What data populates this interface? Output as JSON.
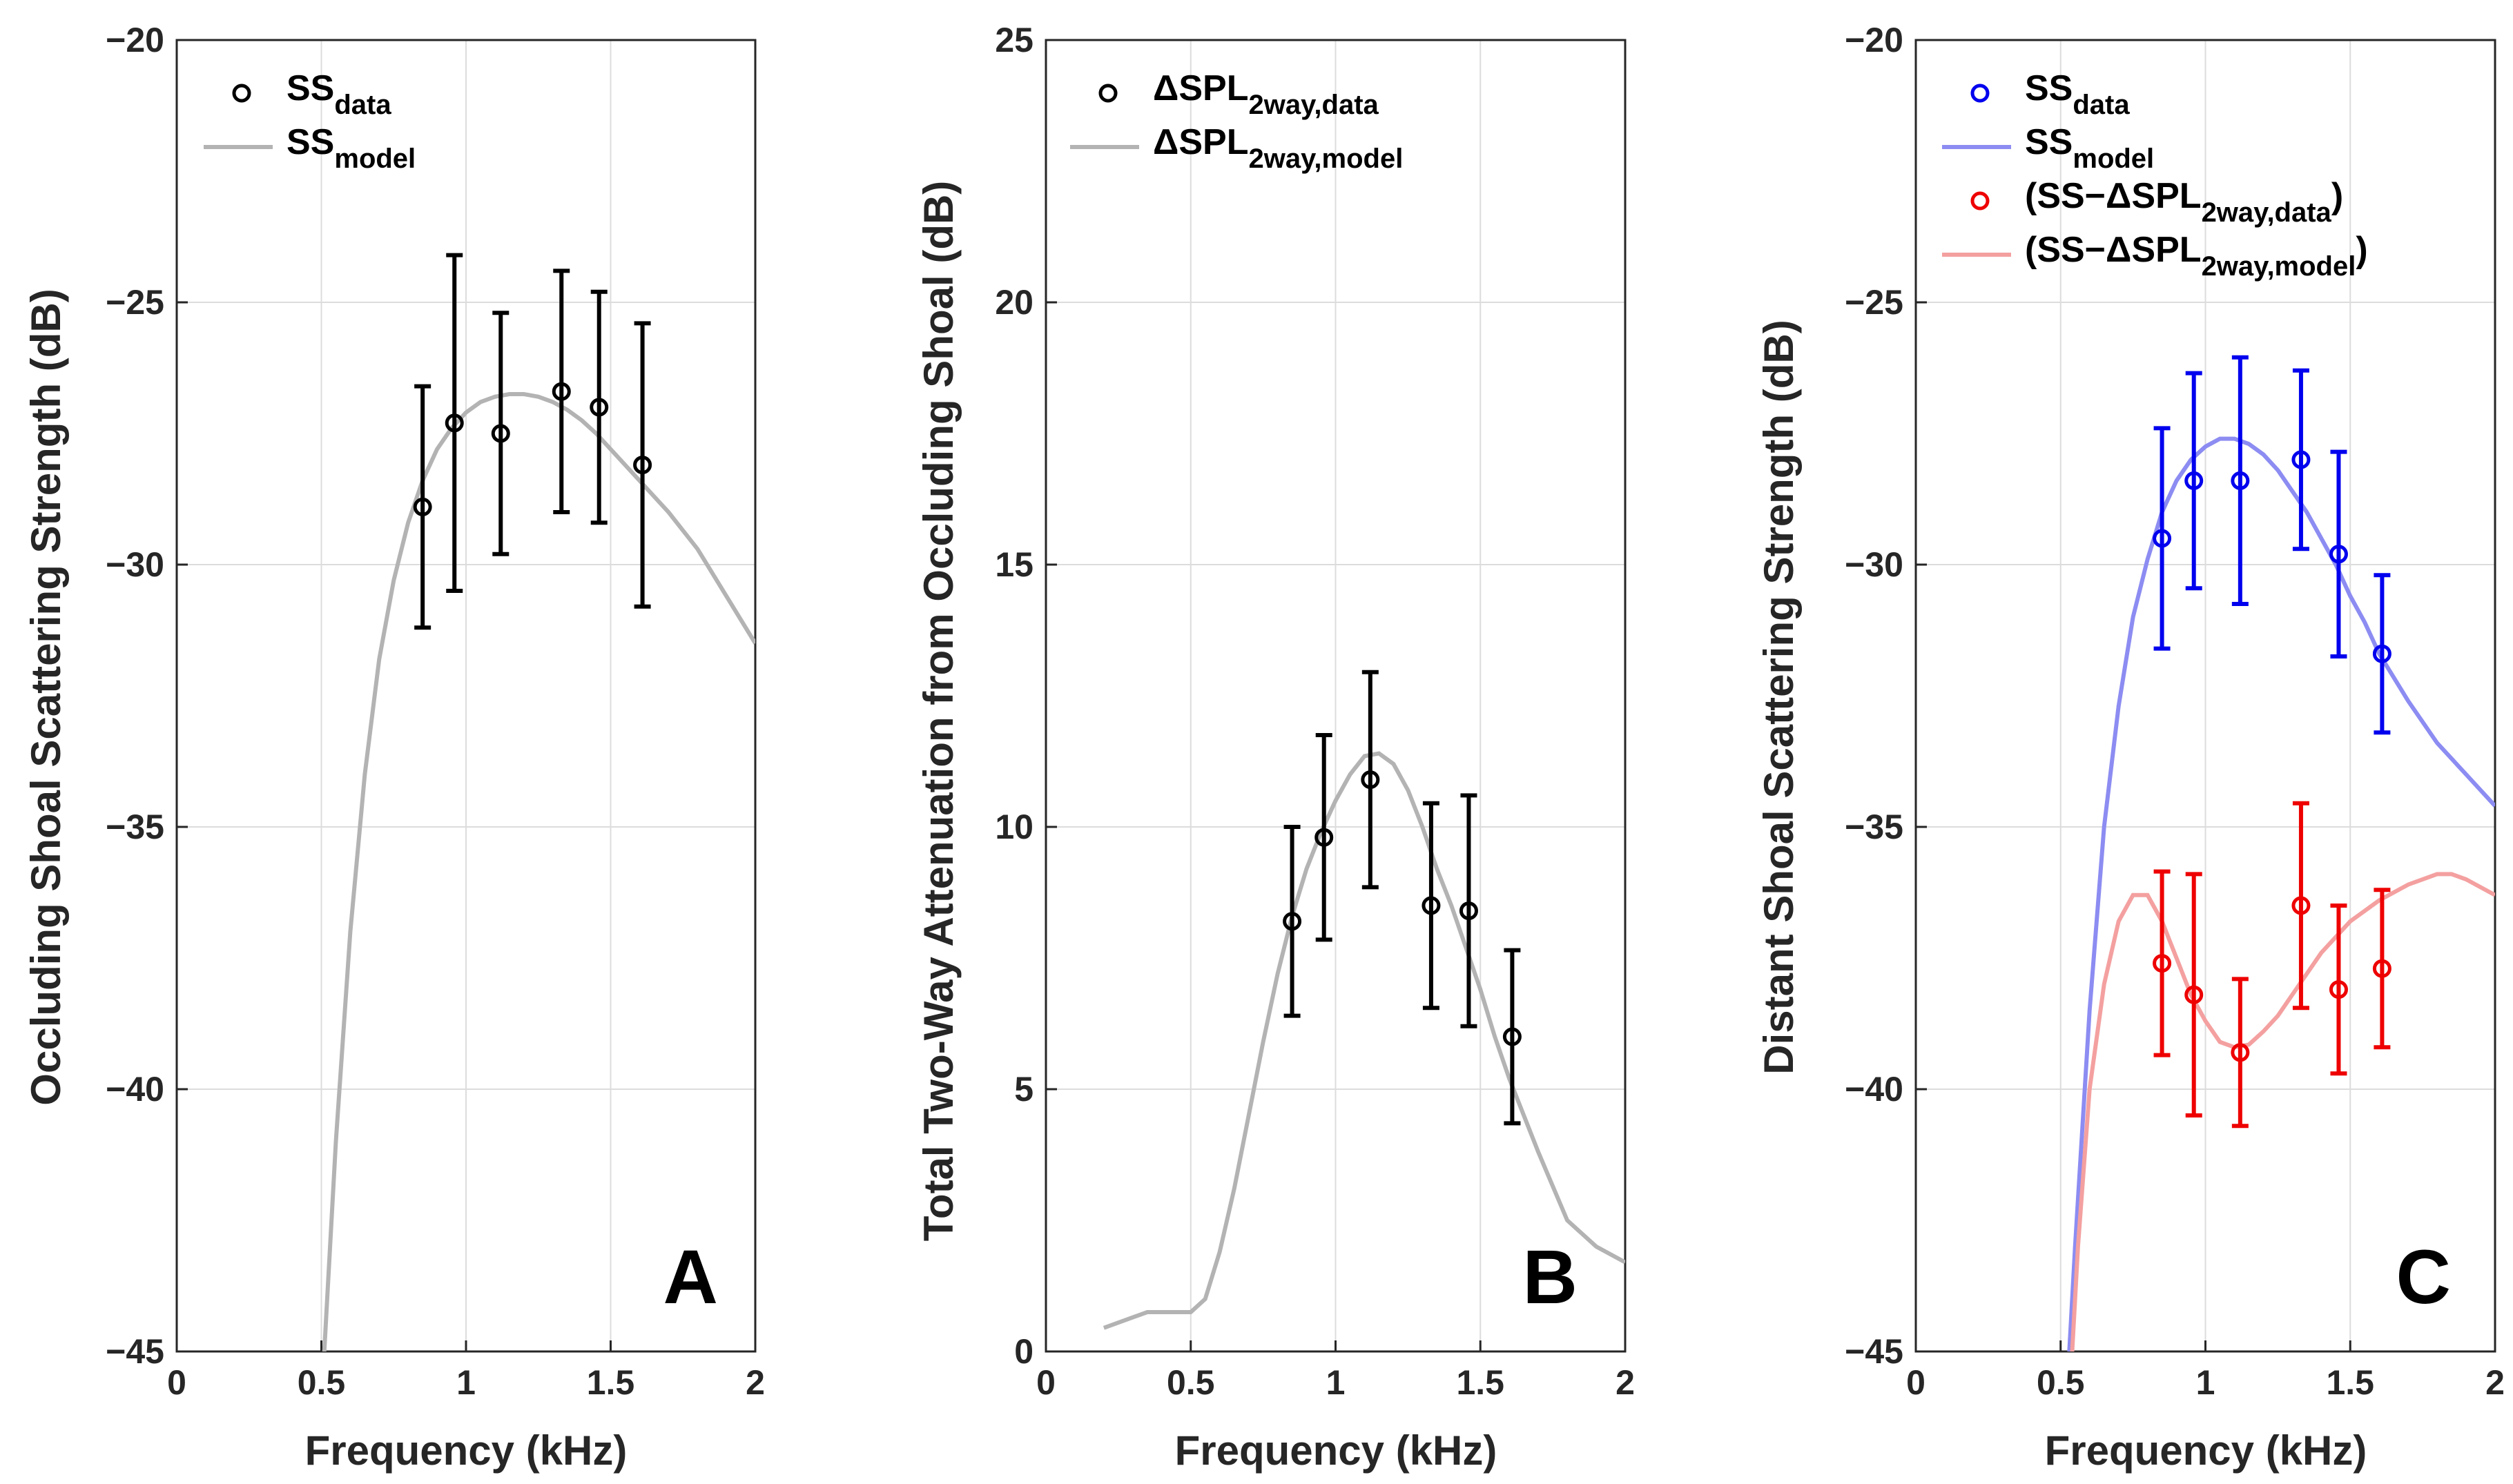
{
  "chart_data": [
    {
      "type": "line",
      "panel": "A",
      "xlabel": "Frequency (kHz)",
      "ylabel": "Occluding Shoal Scattering Strength (dB)",
      "xlim": [
        0,
        2
      ],
      "ylim": [
        -45,
        -20
      ],
      "xticks": [
        0,
        0.5,
        1,
        1.5,
        2
      ],
      "xtick_labels": [
        "0",
        "0.5",
        "1",
        "1.5",
        "2"
      ],
      "yticks": [
        -45,
        -40,
        -35,
        -30,
        -25,
        -20
      ],
      "ytick_labels": [
        "−45",
        "−40",
        "−35",
        "−30",
        "−25",
        "−20"
      ],
      "grid": true,
      "legend_position": "top-left",
      "series": [
        {
          "name": "SS_data",
          "kind": "errorbar",
          "color": "#000000",
          "legend_main": "SS",
          "legend_sub": "data",
          "x": [
            0.85,
            0.96,
            1.12,
            1.33,
            1.46,
            1.61
          ],
          "y": [
            -28.9,
            -27.3,
            -27.5,
            -26.7,
            -27.0,
            -28.1
          ],
          "err": [
            2.3,
            3.2,
            2.3,
            2.3,
            2.2,
            2.7
          ]
        },
        {
          "name": "SS_model",
          "kind": "line",
          "color": "#b3b3b3",
          "legend_main": "SS",
          "legend_sub": "model",
          "x": [
            0.51,
            0.55,
            0.6,
            0.65,
            0.7,
            0.75,
            0.8,
            0.85,
            0.9,
            0.95,
            1.0,
            1.05,
            1.1,
            1.15,
            1.2,
            1.25,
            1.3,
            1.35,
            1.4,
            1.45,
            1.5,
            1.6,
            1.7,
            1.8,
            1.9,
            2.0
          ],
          "y": [
            -45.0,
            -41.0,
            -37.0,
            -34.0,
            -31.8,
            -30.3,
            -29.2,
            -28.4,
            -27.8,
            -27.4,
            -27.1,
            -26.9,
            -26.8,
            -26.75,
            -26.75,
            -26.8,
            -26.9,
            -27.05,
            -27.25,
            -27.5,
            -27.8,
            -28.4,
            -29.0,
            -29.7,
            -30.6,
            -31.5
          ]
        }
      ],
      "label": "A"
    },
    {
      "type": "line",
      "panel": "B",
      "xlabel": "Frequency (kHz)",
      "ylabel": "Total Two-Way Attenuation from Occluding Shoal (dB)",
      "xlim": [
        0,
        2
      ],
      "ylim": [
        0,
        25
      ],
      "xticks": [
        0,
        0.5,
        1,
        1.5,
        2
      ],
      "xtick_labels": [
        "0",
        "0.5",
        "1",
        "1.5",
        "2"
      ],
      "yticks": [
        0,
        5,
        10,
        15,
        20,
        25
      ],
      "ytick_labels": [
        "0",
        "5",
        "10",
        "15",
        "20",
        "25"
      ],
      "grid": true,
      "legend_position": "top-left",
      "series": [
        {
          "name": "ΔSPL_2way,data",
          "kind": "errorbar",
          "color": "#000000",
          "legend_main": "ΔSPL",
          "legend_sub": "2way,data",
          "x": [
            0.85,
            0.96,
            1.12,
            1.33,
            1.46,
            1.61
          ],
          "y": [
            8.2,
            9.8,
            10.9,
            8.5,
            8.4,
            6.0
          ],
          "err": [
            1.8,
            1.95,
            2.05,
            1.95,
            2.2,
            1.65
          ]
        },
        {
          "name": "ΔSPL_2way,model",
          "kind": "line",
          "color": "#b3b3b3",
          "legend_main": "ΔSPL",
          "legend_sub": "2way,model",
          "x": [
            0.2,
            0.3,
            0.35,
            0.4,
            0.5,
            0.55,
            0.6,
            0.65,
            0.7,
            0.75,
            0.8,
            0.85,
            0.9,
            0.95,
            1.0,
            1.05,
            1.1,
            1.15,
            1.2,
            1.25,
            1.3,
            1.35,
            1.4,
            1.45,
            1.5,
            1.55,
            1.6,
            1.7,
            1.8,
            1.9,
            2.0
          ],
          "y": [
            0.45,
            0.65,
            0.75,
            0.75,
            0.75,
            1.0,
            1.9,
            3.1,
            4.5,
            5.9,
            7.2,
            8.3,
            9.2,
            9.9,
            10.5,
            11.0,
            11.35,
            11.4,
            11.2,
            10.7,
            10.0,
            9.2,
            8.5,
            7.7,
            6.9,
            6.0,
            5.2,
            3.8,
            2.5,
            2.0,
            1.7
          ]
        }
      ],
      "label": "B"
    },
    {
      "type": "line",
      "panel": "C",
      "xlabel": "Frequency (kHz)",
      "ylabel": "Distant Shoal Scattering Strength (dB)",
      "xlim": [
        0,
        2
      ],
      "ylim": [
        -45,
        -20
      ],
      "xticks": [
        0,
        0.5,
        1,
        1.5,
        2
      ],
      "xtick_labels": [
        "0",
        "0.5",
        "1",
        "1.5",
        "2"
      ],
      "yticks": [
        -45,
        -40,
        -35,
        -30,
        -25,
        -20
      ],
      "ytick_labels": [
        "−45",
        "−40",
        "−35",
        "−30",
        "−25",
        "−20"
      ],
      "grid": true,
      "legend_position": "top-left",
      "series": [
        {
          "name": "SS_data",
          "kind": "errorbar",
          "color": "#0000ee",
          "legend_main": "SS",
          "legend_sub": "data",
          "x": [
            0.85,
            0.96,
            1.12,
            1.33,
            1.46,
            1.61
          ],
          "y": [
            -29.5,
            -28.4,
            -28.4,
            -28.0,
            -29.8,
            -31.7
          ],
          "err": [
            2.1,
            2.05,
            2.35,
            1.7,
            1.95,
            1.5
          ]
        },
        {
          "name": "SS_model",
          "kind": "line",
          "color": "#8c8cf2",
          "legend_main": "SS",
          "legend_sub": "model",
          "x": [
            0.53,
            0.55,
            0.6,
            0.65,
            0.7,
            0.75,
            0.8,
            0.85,
            0.9,
            0.95,
            1.0,
            1.05,
            1.1,
            1.15,
            1.2,
            1.25,
            1.3,
            1.35,
            1.4,
            1.45,
            1.5,
            1.55,
            1.6,
            1.7,
            1.8,
            1.9,
            2.0
          ],
          "y": [
            -45.0,
            -43.0,
            -38.5,
            -35.0,
            -32.7,
            -31.0,
            -29.9,
            -29.0,
            -28.4,
            -28.0,
            -27.75,
            -27.6,
            -27.6,
            -27.7,
            -27.9,
            -28.2,
            -28.6,
            -29.0,
            -29.5,
            -30.0,
            -30.6,
            -31.1,
            -31.7,
            -32.6,
            -33.4,
            -34.0,
            -34.6
          ]
        },
        {
          "name": "(SS−ΔSPL_2way,data)",
          "kind": "errorbar",
          "color": "#ee0000",
          "legend_main": "(SS−ΔSPL",
          "legend_sub": "2way,data",
          "legend_end": ")",
          "x": [
            0.85,
            0.96,
            1.12,
            1.33,
            1.46,
            1.61
          ],
          "y": [
            -37.6,
            -38.2,
            -39.3,
            -36.5,
            -38.1,
            -37.7
          ],
          "err": [
            1.75,
            2.3,
            1.4,
            1.95,
            1.6,
            1.5
          ]
        },
        {
          "name": "(SS−ΔSPL_2way,model)",
          "kind": "line",
          "color": "#f4a0a0",
          "legend_main": "(SS−ΔSPL",
          "legend_sub": "2way,model",
          "legend_end": ")",
          "x": [
            0.54,
            0.56,
            0.6,
            0.65,
            0.7,
            0.75,
            0.8,
            0.85,
            0.9,
            0.95,
            1.0,
            1.05,
            1.1,
            1.15,
            1.2,
            1.25,
            1.3,
            1.35,
            1.4,
            1.5,
            1.6,
            1.7,
            1.8,
            1.85,
            1.9,
            2.0
          ],
          "y": [
            -45.0,
            -43.0,
            -40.0,
            -38.0,
            -36.8,
            -36.3,
            -36.3,
            -36.8,
            -37.5,
            -38.2,
            -38.7,
            -39.1,
            -39.2,
            -39.15,
            -38.9,
            -38.6,
            -38.2,
            -37.8,
            -37.4,
            -36.8,
            -36.4,
            -36.1,
            -35.9,
            -35.9,
            -36.0,
            -36.3
          ]
        }
      ],
      "label": "C"
    }
  ]
}
